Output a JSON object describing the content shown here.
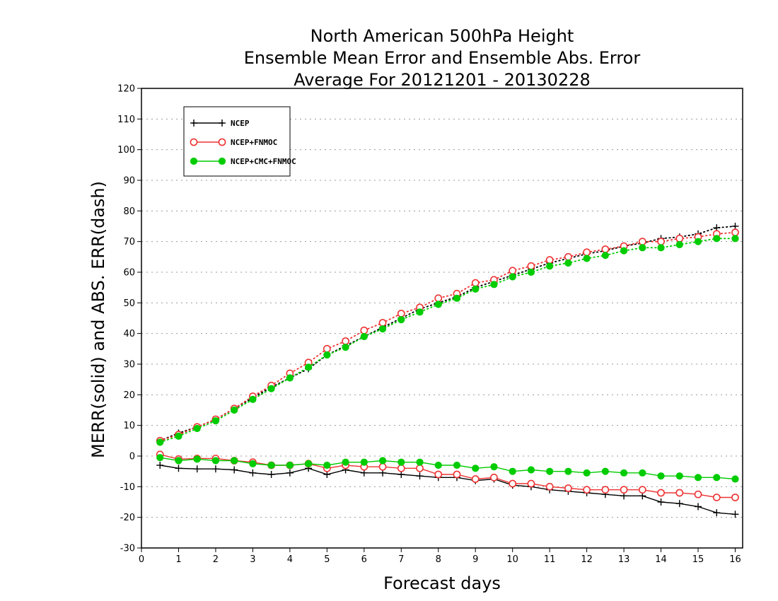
{
  "title_lines": [
    "North American 500hPa Height",
    "Ensemble Mean Error and Ensemble Abs. Error",
    "Average For 20121201 - 20130228"
  ],
  "chart_data": {
    "type": "line",
    "xlabel": "Forecast days",
    "ylabel": "MERR(solid) and ABS. ERR(dash)",
    "xlim": [
      0,
      16.2
    ],
    "ylim": [
      -30,
      120
    ],
    "xticks": [
      0,
      1,
      2,
      3,
      4,
      5,
      6,
      7,
      8,
      9,
      10,
      11,
      12,
      13,
      14,
      15,
      16
    ],
    "yticks": [
      -30,
      -20,
      -10,
      0,
      10,
      20,
      30,
      40,
      50,
      60,
      70,
      80,
      90,
      100,
      110,
      120
    ],
    "grid": "horizontal dotted",
    "legend_position": "top-left",
    "x": [
      0.5,
      1,
      1.5,
      2,
      2.5,
      3,
      3.5,
      4,
      4.5,
      5,
      5.5,
      6,
      6.5,
      7,
      7.5,
      8,
      8.5,
      9,
      9.5,
      10,
      10.5,
      11,
      11.5,
      12,
      12.5,
      13,
      13.5,
      14,
      14.5,
      15,
      15.5,
      16
    ],
    "series": [
      {
        "name": "NCEP",
        "color": "#000000",
        "marker": "plus",
        "abs_err": [
          5,
          7.5,
          9.5,
          12,
          15.5,
          19,
          22.5,
          25.5,
          28.5,
          33,
          36,
          39,
          42,
          45,
          48,
          50,
          52,
          55,
          57,
          59,
          61,
          63,
          64.5,
          66,
          67,
          68.5,
          69.5,
          71,
          71.5,
          72.5,
          74.5,
          75
        ],
        "mean_err": [
          -3,
          -4,
          -4.2,
          -4.2,
          -4.5,
          -5.5,
          -6,
          -5.5,
          -4,
          -6,
          -4.5,
          -5.5,
          -5.5,
          -6,
          -6.5,
          -7,
          -7,
          -8,
          -7.5,
          -9.5,
          -10,
          -11,
          -11.5,
          -12,
          -12.5,
          -13,
          -13,
          -15,
          -15.5,
          -16.5,
          -18.5,
          -19
        ]
      },
      {
        "name": "NCEP+FNMOC",
        "color": "#ee3333",
        "marker": "open-circle",
        "abs_err": [
          5,
          7,
          9.5,
          12,
          15.5,
          19.5,
          23,
          27,
          30.5,
          35,
          37.5,
          41,
          43.5,
          46.5,
          48.5,
          51.5,
          53,
          56.5,
          57.5,
          60.5,
          62,
          64,
          65,
          66.5,
          67.5,
          68.5,
          70,
          70,
          71,
          71.5,
          72.5,
          73
        ],
        "mean_err": [
          0.5,
          -1,
          -0.8,
          -0.8,
          -1.5,
          -2,
          -3,
          -3,
          -2.5,
          -4,
          -3,
          -3.5,
          -3.5,
          -4,
          -4,
          -6,
          -6,
          -7.5,
          -7,
          -9,
          -9,
          -10,
          -10.5,
          -11,
          -11,
          -11,
          -11,
          -12,
          -12,
          -12.5,
          -13.5,
          -13.5
        ]
      },
      {
        "name": "NCEP+CMC+FNMOC",
        "color": "#00cc00",
        "marker": "filled-circle",
        "abs_err": [
          4.5,
          6.5,
          9,
          11.5,
          15,
          18.5,
          22,
          25.5,
          29,
          33,
          35.5,
          39,
          41.5,
          44.5,
          47,
          49.5,
          51.5,
          54.5,
          56,
          58.5,
          60,
          62,
          63,
          64.5,
          65.5,
          67,
          68,
          68,
          69,
          70,
          71,
          71
        ],
        "mean_err": [
          -0.5,
          -1.5,
          -1,
          -1.5,
          -1.5,
          -2.5,
          -3,
          -3,
          -2.5,
          -3,
          -2,
          -2,
          -1.5,
          -2,
          -2,
          -3,
          -3,
          -4,
          -3.5,
          -5,
          -4.5,
          -5,
          -5,
          -5.5,
          -5,
          -5.5,
          -5.5,
          -6.5,
          -6.5,
          -7,
          -7,
          -7.5
        ]
      }
    ]
  }
}
